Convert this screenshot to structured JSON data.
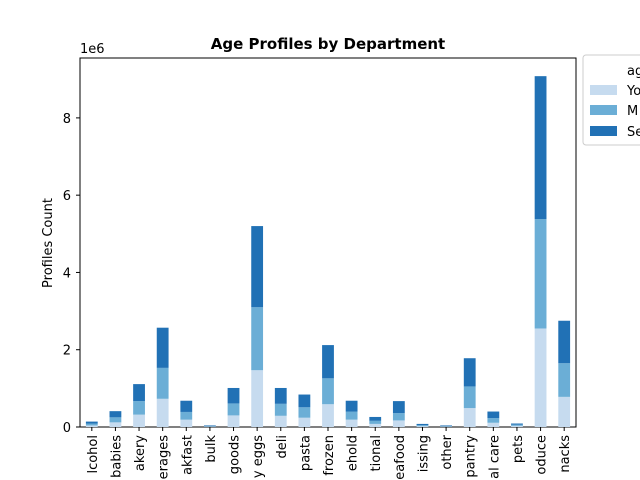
{
  "chart_data": {
    "type": "bar",
    "stacked": true,
    "title": "Age Profiles by Department",
    "xlabel": "",
    "ylabel": "Profiles Count",
    "y_scale_label": "1e6",
    "ylim": [
      0,
      9.55
    ],
    "yticks": [
      0,
      2,
      4,
      6,
      8
    ],
    "categories": [
      "alcohol",
      "babies",
      "bakery",
      "beverages",
      "breakfast",
      "bulk",
      "canned goods",
      "dairy eggs",
      "deli",
      "dry goods pasta",
      "frozen",
      "household",
      "international",
      "meat seafood",
      "missing",
      "other",
      "pantry",
      "personal care",
      "pets",
      "produce",
      "snacks"
    ],
    "category_labels_visible": [
      "lcohol",
      "babies",
      "akery",
      "erages",
      "akfast",
      "bulk",
      "goods",
      "y eggs",
      "deli",
      "pasta",
      "frozen",
      "ehold",
      "tional",
      "eafood",
      "issing",
      "other",
      "pantry",
      "al care",
      "pets",
      "oduce",
      "nacks"
    ],
    "series": [
      {
        "name": "Young Adult",
        "color": "#c6dbef",
        "values": [
          0.04,
          0.12,
          0.32,
          0.73,
          0.19,
          0.01,
          0.3,
          1.47,
          0.29,
          0.24,
          0.59,
          0.19,
          0.08,
          0.17,
          0.02,
          0.01,
          0.49,
          0.11,
          0.03,
          2.55,
          0.78
        ]
      },
      {
        "name": "Middle Aged",
        "color": "#6baed6",
        "values": [
          0.05,
          0.13,
          0.35,
          0.8,
          0.2,
          0.01,
          0.31,
          1.63,
          0.31,
          0.27,
          0.67,
          0.21,
          0.08,
          0.19,
          0.03,
          0.01,
          0.56,
          0.12,
          0.03,
          2.83,
          0.87
        ]
      },
      {
        "name": "Senior",
        "color": "#2171b5",
        "values": [
          0.05,
          0.16,
          0.44,
          1.04,
          0.29,
          0.02,
          0.4,
          2.1,
          0.41,
          0.33,
          0.86,
          0.28,
          0.1,
          0.31,
          0.03,
          0.02,
          0.73,
          0.17,
          0.03,
          3.7,
          1.1
        ]
      }
    ],
    "legend": {
      "title": "ag",
      "entries_visible": [
        "Yo",
        "M",
        "Se"
      ],
      "placement": "outside-top-right"
    },
    "grid": false
  }
}
